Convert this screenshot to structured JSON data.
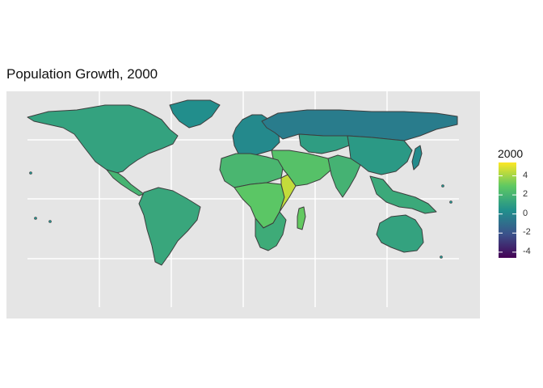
{
  "title": "Population Growth, 2000",
  "legend": {
    "title": "2000",
    "ticks": [
      "4",
      "2",
      "0",
      "-2",
      "-4"
    ],
    "min": -4.6,
    "max": 5.4,
    "palette": [
      "#440154",
      "#3b528b",
      "#21908c",
      "#5dc863",
      "#fde725"
    ]
  },
  "colors": {
    "panel_background": "#e5e5e5",
    "gridline": "#ffffff",
    "country_border": "#3d3d3d"
  },
  "regions": [
    {
      "name": "north-america",
      "value": 1.2
    },
    {
      "name": "greenland",
      "value": 0.3
    },
    {
      "name": "central-america",
      "value": 2.0
    },
    {
      "name": "south-america",
      "value": 1.4
    },
    {
      "name": "europe",
      "value": 0.1
    },
    {
      "name": "russia",
      "value": -0.4
    },
    {
      "name": "middle-east",
      "value": 2.6
    },
    {
      "name": "north-africa",
      "value": 2.1
    },
    {
      "name": "sub-saharan-africa",
      "value": 2.8
    },
    {
      "name": "east-africa",
      "value": 4.5
    },
    {
      "name": "southern-africa",
      "value": 1.6
    },
    {
      "name": "central-asia",
      "value": 1.0
    },
    {
      "name": "south-asia",
      "value": 1.9
    },
    {
      "name": "china",
      "value": 0.8
    },
    {
      "name": "southeast-asia",
      "value": 1.5
    },
    {
      "name": "japan",
      "value": 0.2
    },
    {
      "name": "australia",
      "value": 1.2
    },
    {
      "name": "madagascar",
      "value": 3.0
    }
  ]
}
